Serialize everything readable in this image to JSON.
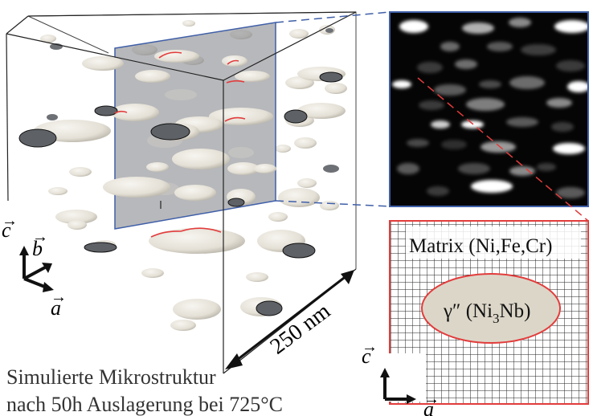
{
  "labels": {
    "dimension": "250 nm",
    "matrix": "Matrix (Ni,Fe,Cr)",
    "precipitate_prefix": "γ″ (Ni",
    "precipitate_sub": "3",
    "precipitate_suffix": "Nb)",
    "caption_line1": "Simulierte Mikrostruktur",
    "caption_line2": "nach 50h Auslagerung bei 725°C",
    "axis_c": "c",
    "axis_b": "b",
    "axis_a": "a",
    "axis_c_zoom": "c",
    "axis_a_zoom": "a"
  },
  "colors": {
    "section_plane": "#8f9297",
    "particle": "#e6e3dc",
    "zoom_frame_blue": "#3f5fa8",
    "zoom_frame_red": "#e23c3c",
    "ellipse_fill": "#dcd6c8"
  }
}
